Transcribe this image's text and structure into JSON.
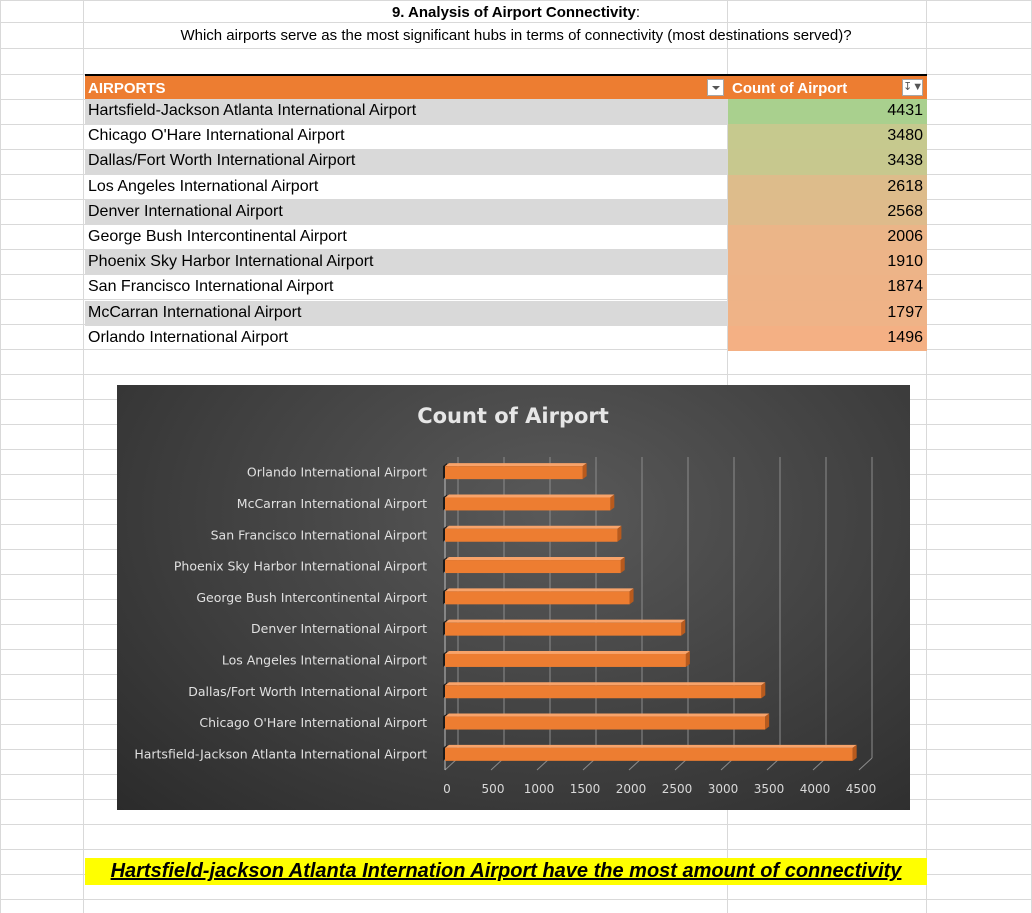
{
  "sheet": {
    "heading": "9. Analysis of Airport Connectivity",
    "heading_colon": ":",
    "question": "Which airports serve as the most significant hubs in terms of connectivity (most destinations served)?"
  },
  "pivot": {
    "col1_header": "AIRPORTS",
    "col2_header": "Count of Airport",
    "filter_icon": "sort-filter-icon",
    "dropdown_icon": "dropdown-arrow-icon",
    "rows": [
      {
        "name": "Hartsfield-Jackson Atlanta International Airport",
        "value": "4431",
        "color": "#A9D08E"
      },
      {
        "name": "Chicago O'Hare International Airport",
        "value": "3480",
        "color": "#C6C98E"
      },
      {
        "name": "Dallas/Fort Worth International Airport",
        "value": "3438",
        "color": "#C7C88E"
      },
      {
        "name": "Los Angeles International Airport",
        "value": "2618",
        "color": "#DDBC8B"
      },
      {
        "name": "Denver International Airport",
        "value": "2568",
        "color": "#DEBB8B"
      },
      {
        "name": "George Bush Intercontinental Airport",
        "value": "2006",
        "color": "#EBB588"
      },
      {
        "name": "Phoenix Sky Harbor International Airport",
        "value": "1910",
        "color": "#EDB488"
      },
      {
        "name": "San Francisco International Airport",
        "value": "1874",
        "color": "#EEB387"
      },
      {
        "name": "McCarran International Airport",
        "value": "1797",
        "color": "#EFB387"
      },
      {
        "name": "Orlando International Airport",
        "value": "1496",
        "color": "#F4B084"
      }
    ]
  },
  "chart_data": {
    "type": "bar",
    "orientation": "horizontal",
    "title": "Count of Airport",
    "categories": [
      "Orlando International Airport",
      "McCarran International Airport",
      "San Francisco International Airport",
      "Phoenix Sky Harbor International Airport",
      "George Bush Intercontinental Airport",
      "Denver International Airport",
      "Los Angeles International Airport",
      "Dallas/Fort Worth International Airport",
      "Chicago O'Hare International Airport",
      "Hartsfield-Jackson Atlanta International Airport"
    ],
    "values": [
      1496,
      1797,
      1874,
      1910,
      2006,
      2568,
      2618,
      3438,
      3480,
      4431
    ],
    "xlim": [
      0,
      4500
    ],
    "xticks": [
      "0",
      "500",
      "1000",
      "1500",
      "2000",
      "2500",
      "3000",
      "3500",
      "4000",
      "4500"
    ],
    "grid": true,
    "legend": "none",
    "bar_color": "#ED7D31",
    "background": "#404040"
  },
  "conclusion": "Hartsfield-jackson Atlanta Internation Airport have the most amount of connectivity"
}
